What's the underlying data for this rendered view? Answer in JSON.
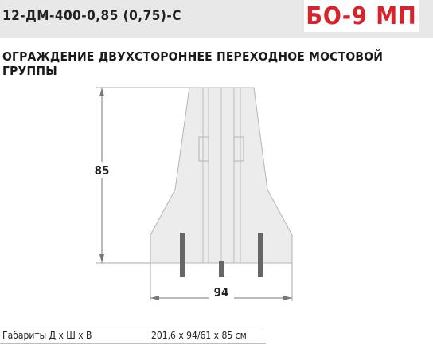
{
  "header": {
    "product_code": "12-ДМ-400-0,85 (0,75)-С",
    "model": "БО-9 МП"
  },
  "title": "ОГРАЖДЕНИЕ ДВУХСТОРОННЕЕ ПЕРЕХОДНОЕ МОСТОВОЙ ГРУППЫ",
  "drawing": {
    "height_label": "85",
    "width_label": "94"
  },
  "specs": {
    "label": "Габариты Д х Ш х В",
    "value": "201,6 х 94/61 х 85 см"
  },
  "colors": {
    "accent": "#d8232a",
    "header_bg": "#e8e8e8",
    "barrier_fill": "#ececec",
    "rod": "#666666"
  }
}
